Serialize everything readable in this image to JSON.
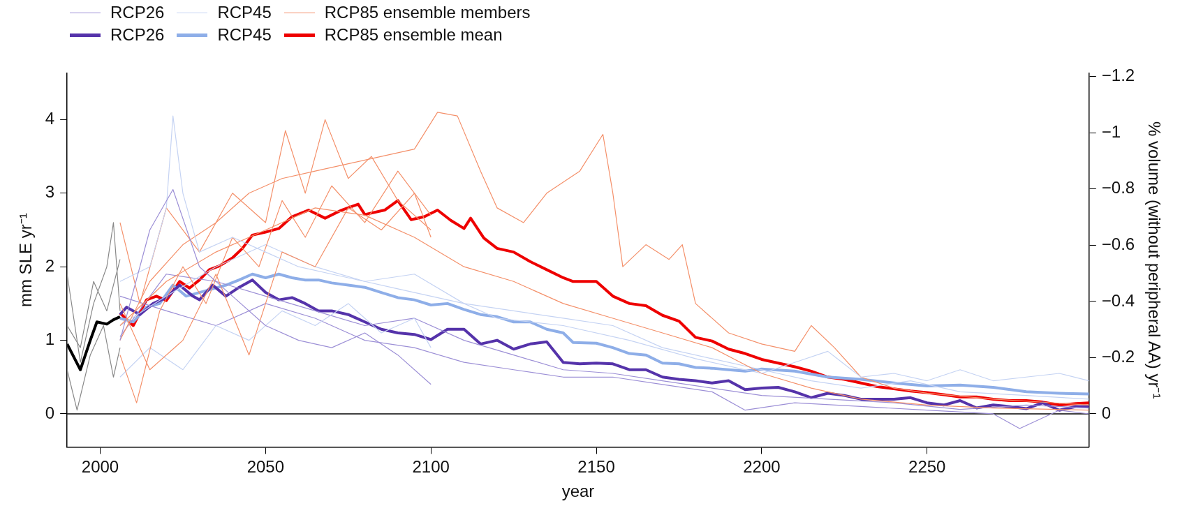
{
  "chart_data": {
    "type": "line",
    "xlabel": "year",
    "ylabel": "mm SLE yr⁻¹",
    "y2label": "% volume (without peripheral AA) yr⁻¹",
    "xlim": [
      1990,
      2299
    ],
    "xticks": [
      2000,
      2050,
      2100,
      2150,
      2200,
      2250
    ],
    "ylim": [
      -0.45,
      4.63
    ],
    "yticks": [
      0,
      1,
      2,
      3,
      4
    ],
    "y2lim": [
      0.118,
      -1.212
    ],
    "y2ticks": [
      {
        "value": 0,
        "label": "0"
      },
      {
        "value": -0.2,
        "label": "−0.2"
      },
      {
        "value": -0.4,
        "label": "−0.4"
      },
      {
        "value": -0.6,
        "label": "−0.6"
      },
      {
        "value": -0.8,
        "label": "−0.8"
      },
      {
        "value": -1,
        "label": "−1"
      },
      {
        "value": -1.2,
        "label": "−1.2"
      }
    ],
    "legend": "top left",
    "ref_lines": [
      {
        "axis": "y",
        "value": 0,
        "color": "#000000"
      }
    ],
    "series": [
      {
        "name": "RCP26",
        "color": "#9c8fd6",
        "x": [
          2006,
          2015,
          2022,
          2030,
          2040,
          2050,
          2060,
          2070,
          2080,
          2090,
          2100
        ],
        "values": [
          1.0,
          2.5,
          3.05,
          2.0,
          1.6,
          1.2,
          1.0,
          0.9,
          1.1,
          0.8,
          0.4
        ]
      },
      {
        "name": "RCP45",
        "color": "#c5d3f3",
        "x": [
          2006,
          2015,
          2020,
          2022,
          2025,
          2030,
          2040,
          2050,
          2060,
          2070,
          2080,
          2090,
          2100,
          2110,
          2120,
          2140,
          2160,
          2180,
          2200,
          2210,
          2220,
          2230,
          2240,
          2250,
          2260,
          2270,
          2280,
          2290,
          2299
        ],
        "values": [
          1.8,
          2.0,
          2.8,
          4.05,
          3.0,
          2.2,
          2.4,
          2.2,
          2.0,
          1.9,
          1.8,
          1.7,
          1.6,
          1.5,
          1.3,
          1.2,
          1.0,
          0.75,
          0.55,
          0.7,
          0.85,
          0.5,
          0.55,
          0.45,
          0.6,
          0.45,
          0.5,
          0.55,
          0.45
        ]
      },
      {
        "name": "RCP85 ensemble members",
        "color": "#f4906a",
        "x": [
          2006,
          2015,
          2025,
          2035,
          2045,
          2055,
          2065,
          2075,
          2085,
          2095,
          2102,
          2108,
          2115,
          2120,
          2128,
          2135,
          2145,
          2152,
          2155,
          2158,
          2165,
          2172,
          2176,
          2180,
          2190,
          2200,
          2210,
          2215,
          2222,
          2230,
          2240,
          2250,
          2270,
          2299
        ],
        "values": [
          1.0,
          1.8,
          2.3,
          2.6,
          3.0,
          3.2,
          3.3,
          3.4,
          3.5,
          3.6,
          4.1,
          4.05,
          3.3,
          2.8,
          2.6,
          3.0,
          3.3,
          3.8,
          3.0,
          2.0,
          2.3,
          2.1,
          2.3,
          1.5,
          1.1,
          0.95,
          0.85,
          1.2,
          0.9,
          0.5,
          0.35,
          0.28,
          0.2,
          0.12
        ]
      },
      {
        "color": "#f4906a",
        "x": [
          2006,
          2012,
          2020,
          2030,
          2040,
          2050,
          2056,
          2062,
          2068,
          2075,
          2082,
          2090,
          2100
        ],
        "values": [
          2.6,
          1.5,
          2.8,
          2.2,
          3.0,
          2.6,
          3.85,
          3.0,
          4.0,
          3.2,
          3.5,
          2.9,
          2.5
        ]
      },
      {
        "color": "#f4906a",
        "x": [
          2006,
          2011,
          2018,
          2025,
          2032,
          2040,
          2048,
          2055,
          2062,
          2070,
          2080,
          2090,
          2100
        ],
        "values": [
          0.8,
          0.15,
          1.4,
          2.0,
          1.5,
          2.4,
          2.0,
          2.9,
          2.4,
          3.1,
          2.6,
          3.3,
          2.7
        ]
      },
      {
        "color": "#f4906a",
        "x": [
          2006,
          2020,
          2035,
          2050,
          2065,
          2080,
          2095,
          2110,
          2125,
          2140,
          2155,
          2170,
          2185,
          2200,
          2215,
          2230,
          2250,
          2270,
          2299
        ],
        "values": [
          1.2,
          1.8,
          2.2,
          2.5,
          2.8,
          2.7,
          2.4,
          2.0,
          1.8,
          1.5,
          1.3,
          1.1,
          0.9,
          0.55,
          0.35,
          0.2,
          0.12,
          0.08,
          0.05
        ]
      },
      {
        "color": "#f4906a",
        "x": [
          2006,
          2015,
          2025,
          2035,
          2045,
          2055,
          2065,
          2075,
          2085,
          2095,
          2100
        ],
        "values": [
          1.5,
          0.6,
          1.0,
          1.9,
          0.8,
          2.2,
          2.0,
          2.8,
          2.5,
          3.0,
          2.4
        ]
      },
      {
        "color": "#c5d3f3",
        "x": [
          2006,
          2015,
          2025,
          2035,
          2045,
          2055,
          2065,
          2075,
          2085,
          2095,
          2100
        ],
        "values": [
          0.5,
          0.9,
          0.6,
          1.2,
          1.0,
          1.4,
          1.2,
          1.5,
          1.1,
          1.3,
          0.9
        ]
      },
      {
        "color": "#c5d3f3",
        "x": [
          2006,
          2020,
          2035,
          2050,
          2065,
          2080,
          2095,
          2110,
          2125,
          2140,
          2155,
          2170,
          2185,
          2200,
          2215,
          2230,
          2245,
          2260,
          2280,
          2299
        ],
        "values": [
          1.2,
          1.6,
          2.0,
          2.3,
          2.0,
          1.8,
          1.9,
          1.5,
          1.4,
          1.3,
          1.2,
          0.9,
          0.75,
          0.6,
          0.45,
          0.35,
          0.45,
          0.3,
          0.25,
          0.2
        ]
      },
      {
        "color": "#9c8fd6",
        "x": [
          2006,
          2020,
          2035,
          2050,
          2065,
          2080,
          2095,
          2110,
          2125,
          2140,
          2155,
          2170,
          2185,
          2195,
          2210,
          2230,
          2250,
          2270,
          2278,
          2290,
          2299
        ],
        "values": [
          1.6,
          1.4,
          1.2,
          1.5,
          1.3,
          1.0,
          0.9,
          0.7,
          0.6,
          0.5,
          0.5,
          0.4,
          0.3,
          0.05,
          0.15,
          0.1,
          0.05,
          0.0,
          -0.2,
          0.05,
          0.0
        ]
      },
      {
        "color": "#9c8fd6",
        "x": [
          2006,
          2020,
          2035,
          2050,
          2065,
          2080,
          2095,
          2110,
          2125,
          2140,
          2155,
          2170,
          2185,
          2200,
          2220,
          2240,
          2260,
          2280,
          2299
        ],
        "values": [
          1.05,
          1.9,
          1.8,
          1.6,
          1.4,
          1.2,
          1.3,
          1.0,
          0.8,
          0.6,
          0.55,
          0.45,
          0.35,
          0.25,
          0.2,
          0.15,
          0.06,
          0.12,
          0.08
        ]
      },
      {
        "color": "#888888",
        "x": [
          1990,
          1994,
          1998,
          2002,
          2004,
          2006
        ],
        "values": [
          1.9,
          0.7,
          1.5,
          2.0,
          2.6,
          1.4
        ]
      },
      {
        "color": "#888888",
        "x": [
          1990,
          1993,
          1997,
          2001,
          2004,
          2006
        ],
        "values": [
          0.6,
          0.05,
          0.8,
          1.2,
          0.5,
          0.9
        ]
      },
      {
        "color": "#888888",
        "x": [
          1990,
          1994,
          1998,
          2002,
          2006
        ],
        "values": [
          1.2,
          0.9,
          1.8,
          1.4,
          2.1
        ]
      },
      {
        "color": "#000000",
        "x": [
          1990,
          1994,
          1997,
          1999,
          2002,
          2004,
          2006
        ],
        "values": [
          0.95,
          0.6,
          1.0,
          1.25,
          1.22,
          1.28,
          1.32
        ]
      },
      {
        "name": "RCP26",
        "color": "#5533aa",
        "x": [
          2006,
          2008,
          2012,
          2016,
          2020,
          2024,
          2028,
          2030,
          2034,
          2038,
          2042,
          2046,
          2050,
          2054,
          2058,
          2062,
          2066,
          2070,
          2075,
          2080,
          2085,
          2090,
          2095,
          2100,
          2105,
          2110,
          2115,
          2120,
          2125,
          2130,
          2135,
          2140,
          2145,
          2150,
          2155,
          2160,
          2165,
          2170,
          2175,
          2180,
          2185,
          2190,
          2195,
          2200,
          2205,
          2210,
          2215,
          2220,
          2225,
          2230,
          2235,
          2240,
          2245,
          2250,
          2255,
          2260,
          2265,
          2270,
          2275,
          2280,
          2285,
          2290,
          2295,
          2299
        ],
        "values": [
          1.35,
          1.45,
          1.35,
          1.5,
          1.58,
          1.75,
          1.6,
          1.55,
          1.75,
          1.6,
          1.72,
          1.82,
          1.65,
          1.55,
          1.58,
          1.5,
          1.4,
          1.4,
          1.35,
          1.25,
          1.15,
          1.1,
          1.08,
          1.01,
          1.15,
          1.15,
          0.95,
          1.0,
          0.88,
          0.95,
          0.98,
          0.7,
          0.68,
          0.69,
          0.68,
          0.6,
          0.6,
          0.5,
          0.47,
          0.45,
          0.42,
          0.45,
          0.33,
          0.35,
          0.36,
          0.3,
          0.22,
          0.28,
          0.25,
          0.2,
          0.2,
          0.2,
          0.22,
          0.15,
          0.12,
          0.18,
          0.08,
          0.12,
          0.1,
          0.07,
          0.15,
          0.05,
          0.1,
          0.1
        ]
      },
      {
        "name": "RCP45",
        "color": "#8eaee8",
        "x": [
          2006,
          2010,
          2014,
          2018,
          2022,
          2026,
          2030,
          2034,
          2038,
          2042,
          2046,
          2050,
          2054,
          2058,
          2062,
          2066,
          2070,
          2075,
          2080,
          2085,
          2090,
          2095,
          2100,
          2105,
          2110,
          2115,
          2120,
          2125,
          2130,
          2135,
          2140,
          2143,
          2150,
          2155,
          2160,
          2165,
          2170,
          2175,
          2180,
          2185,
          2190,
          2195,
          2200,
          2210,
          2220,
          2230,
          2240,
          2250,
          2260,
          2270,
          2280,
          2290,
          2299
        ],
        "values": [
          1.3,
          1.25,
          1.45,
          1.5,
          1.75,
          1.6,
          1.65,
          1.7,
          1.75,
          1.82,
          1.9,
          1.85,
          1.9,
          1.85,
          1.82,
          1.82,
          1.78,
          1.75,
          1.72,
          1.65,
          1.58,
          1.55,
          1.48,
          1.5,
          1.42,
          1.35,
          1.32,
          1.25,
          1.25,
          1.15,
          1.1,
          0.97,
          0.96,
          0.9,
          0.82,
          0.8,
          0.69,
          0.68,
          0.63,
          0.62,
          0.6,
          0.58,
          0.61,
          0.58,
          0.5,
          0.47,
          0.42,
          0.38,
          0.39,
          0.36,
          0.3,
          0.28,
          0.27
        ]
      },
      {
        "name": "RCP85 ensemble mean",
        "color": "#ee0000",
        "x": [
          2006,
          2010,
          2014,
          2017,
          2020,
          2024,
          2027,
          2030,
          2033,
          2036,
          2040,
          2043,
          2046,
          2050,
          2054,
          2058,
          2063,
          2068,
          2073,
          2078,
          2080,
          2086,
          2090,
          2094,
          2098,
          2102,
          2106,
          2110,
          2112,
          2116,
          2120,
          2125,
          2130,
          2135,
          2140,
          2143,
          2150,
          2155,
          2160,
          2165,
          2170,
          2175,
          2180,
          2185,
          2190,
          2195,
          2200,
          2205,
          2210,
          2215,
          2220,
          2225,
          2230,
          2235,
          2240,
          2245,
          2250,
          2255,
          2260,
          2265,
          2270,
          2275,
          2280,
          2285,
          2290,
          2295,
          2299
        ],
        "values": [
          1.37,
          1.2,
          1.55,
          1.6,
          1.54,
          1.8,
          1.71,
          1.82,
          1.96,
          2.01,
          2.12,
          2.25,
          2.43,
          2.47,
          2.52,
          2.68,
          2.77,
          2.66,
          2.77,
          2.85,
          2.71,
          2.77,
          2.9,
          2.64,
          2.68,
          2.77,
          2.63,
          2.52,
          2.66,
          2.39,
          2.25,
          2.2,
          2.07,
          1.96,
          1.85,
          1.8,
          1.8,
          1.6,
          1.5,
          1.47,
          1.34,
          1.26,
          1.04,
          0.99,
          0.88,
          0.82,
          0.74,
          0.69,
          0.64,
          0.58,
          0.5,
          0.47,
          0.42,
          0.37,
          0.34,
          0.31,
          0.29,
          0.26,
          0.23,
          0.23,
          0.2,
          0.18,
          0.18,
          0.16,
          0.12,
          0.14,
          0.15
        ]
      }
    ]
  }
}
